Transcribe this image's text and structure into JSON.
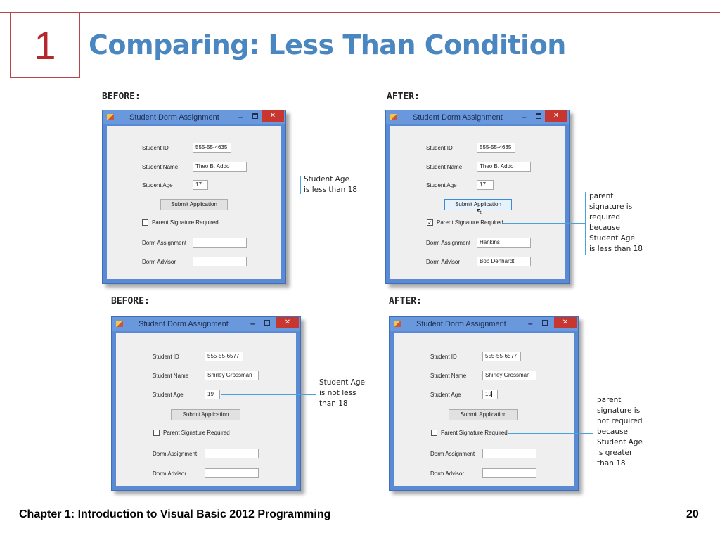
{
  "slide": {
    "number": "1",
    "title": "Comparing: Less Than Condition",
    "footer": "Chapter 1: Introduction to Visual Basic 2012 Programming",
    "page": "20"
  },
  "headings": {
    "before": "BEFORE:",
    "after": "AFTER:"
  },
  "window": {
    "title": "Student Dorm Assignment",
    "minimize_glyph": "–",
    "close_glyph": "✕",
    "labels": {
      "student_id": "Student ID",
      "student_name": "Student Name",
      "student_age": "Student Age",
      "submit": "Submit Application",
      "parent_sig": "Parent Signature Required",
      "dorm_assignment": "Dorm Assignment",
      "dorm_advisor": "Dorm Advisor"
    }
  },
  "examples": [
    {
      "before": {
        "student_id": "555-55-4635",
        "student_name": "Theo B. Addo",
        "student_age": "17",
        "parent_sig_checked": false,
        "dorm_assignment": "",
        "dorm_advisor": ""
      },
      "after": {
        "student_id": "555-55-4635",
        "student_name": "Theo B. Addo",
        "student_age": "17",
        "parent_sig_checked": true,
        "check_glyph": "✓",
        "dorm_assignment": "Hankins",
        "dorm_advisor": "Bob Denhardt"
      },
      "annotation_before": [
        "Student Age",
        "is less than 18"
      ],
      "annotation_after": [
        "parent",
        "signature is",
        "required",
        "because",
        "Student Age",
        "is less than 18"
      ]
    },
    {
      "before": {
        "student_id": "555-55-6577",
        "student_name": "Shirley Grossman",
        "student_age": "19",
        "parent_sig_checked": false,
        "dorm_assignment": "",
        "dorm_advisor": ""
      },
      "after": {
        "student_id": "555-55-6577",
        "student_name": "Shirley Grossman",
        "student_age": "19",
        "parent_sig_checked": false,
        "dorm_assignment": "",
        "dorm_advisor": ""
      },
      "annotation_before": [
        "Student Age",
        "is not less",
        "than 18"
      ],
      "annotation_after": [
        "parent",
        "signature is",
        "not required",
        "because",
        "Student Age",
        "is greater",
        "than 18"
      ]
    }
  ],
  "cursor_glyph": "⇖"
}
